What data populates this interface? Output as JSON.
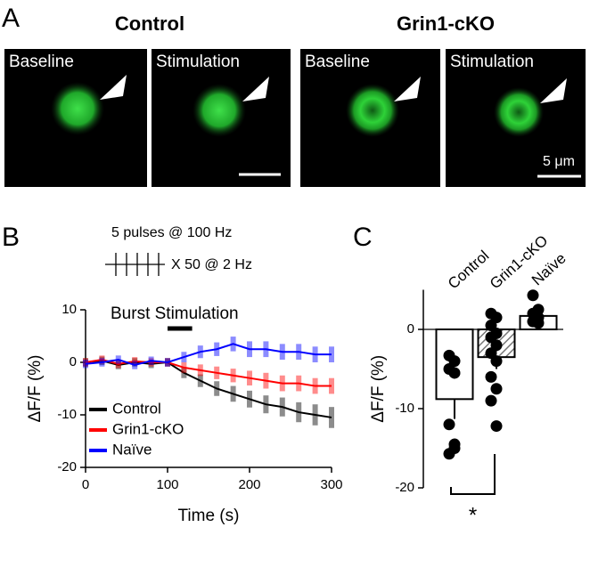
{
  "panel_labels": [
    "A",
    "B",
    "C"
  ],
  "panel_a": {
    "groups": [
      "Control",
      "Grin1-cKO"
    ],
    "images": [
      "Baseline",
      "Stimulation",
      "Baseline",
      "Stimulation"
    ],
    "scale_bar": "5 μm"
  },
  "chart_data": [
    {
      "type": "line",
      "xlabel": "Time (s)",
      "ylabel": "ΔF/F (%)",
      "xlim": [
        0,
        300
      ],
      "xticks": [
        0,
        100,
        200,
        300
      ],
      "ylim": [
        -20,
        10
      ],
      "yticks": [
        -20,
        -10,
        0,
        10
      ],
      "annotations": {
        "protocol": "5 pulses @ 100 Hz",
        "repeat": "X 50 @ 2 Hz",
        "stimulation": "Burst Stimulation"
      },
      "stimulation_window": [
        100,
        130
      ],
      "x": [
        0,
        20,
        40,
        60,
        80,
        100,
        120,
        140,
        160,
        180,
        200,
        220,
        240,
        260,
        280,
        300
      ],
      "series": [
        {
          "name": "Control",
          "color": "#000000",
          "values": [
            0,
            0.3,
            -0.5,
            0,
            -0.3,
            0,
            -2,
            -3.5,
            -5,
            -6,
            -7,
            -8,
            -8.5,
            -9.5,
            -10,
            -10.5
          ],
          "errors": [
            0.8,
            0.8,
            0.8,
            0.8,
            0.8,
            0.8,
            1,
            1.2,
            1.4,
            1.5,
            1.6,
            1.7,
            1.8,
            1.9,
            2,
            2
          ]
        },
        {
          "name": "Grin1-cKO",
          "color": "#ff0000",
          "values": [
            0,
            0.5,
            -0.3,
            0.2,
            0,
            0,
            -1,
            -1.5,
            -2,
            -2.5,
            -3,
            -3.5,
            -4,
            -4,
            -4.5,
            -4.5
          ],
          "errors": [
            0.8,
            0.8,
            0.8,
            0.8,
            0.8,
            0.8,
            1,
            1.1,
            1.2,
            1.3,
            1.4,
            1.5,
            1.5,
            1.5,
            1.5,
            1.5
          ]
        },
        {
          "name": "Naïve",
          "color": "#0000ff",
          "values": [
            -0.3,
            0,
            0.5,
            -0.5,
            0.3,
            0,
            1,
            2,
            2.5,
            3.5,
            2.5,
            2.5,
            2,
            2,
            1.5,
            1.5
          ],
          "errors": [
            0.8,
            0.8,
            0.8,
            0.8,
            0.8,
            0.8,
            1,
            1.2,
            1.3,
            1.4,
            1.5,
            1.5,
            1.5,
            1.5,
            1.5,
            1.5
          ]
        }
      ]
    },
    {
      "type": "bar",
      "ylabel": "ΔF/F (%)",
      "ylim": [
        -20,
        5
      ],
      "yticks": [
        -20,
        -10,
        0
      ],
      "categories": [
        "Control",
        "Grin1-cKO",
        "Naïve"
      ],
      "values": [
        -8.8,
        -3.5,
        1.7
      ],
      "errors": [
        2.5,
        1.5,
        0.8
      ],
      "hatched": [
        false,
        true,
        false
      ],
      "points": [
        [
          -3.3,
          -4,
          -5,
          -5.5,
          -12,
          -14.5,
          -15.7,
          -15
        ],
        [
          2,
          1.5,
          0.5,
          -0.5,
          -1,
          -2,
          -3,
          -4,
          -6,
          -7.5,
          -9,
          -12.2
        ],
        [
          4.3,
          2.5,
          2,
          1.5,
          1,
          0.8
        ]
      ],
      "significance": {
        "label": "*",
        "between": [
          0,
          1
        ]
      }
    }
  ]
}
